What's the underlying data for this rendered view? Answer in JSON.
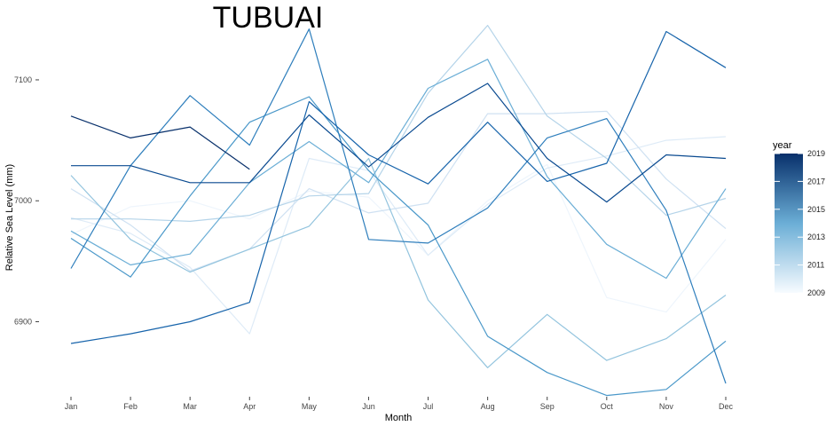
{
  "chart_data": {
    "type": "line",
    "title": "TUBUAI",
    "xlabel": "Month",
    "ylabel": "Relative Sea Level (mm)",
    "categories": [
      "Jan",
      "Feb",
      "Mar",
      "Apr",
      "May",
      "Jun",
      "Jul",
      "Aug",
      "Sep",
      "Oct",
      "Nov",
      "Dec"
    ],
    "yticks": [
      6900,
      7000,
      7100
    ],
    "ylim": [
      6838,
      7144
    ],
    "grid": false,
    "legend": {
      "title": "year",
      "position": "right",
      "type": "colorbar",
      "range": [
        2009,
        2019
      ],
      "ticks": [
        2019,
        2017,
        2015,
        2013,
        2011,
        2009
      ],
      "low_color": "#f7fbff",
      "high_color": "#08306b"
    },
    "series": [
      {
        "year": 2009,
        "color": "#eef5fc",
        "values": [
          6972,
          6995,
          7000,
          6985,
          7008,
          7003,
          6955,
          7000,
          7030,
          6920,
          6908,
          6968
        ]
      },
      {
        "year": 2010,
        "color": "#deebf7",
        "values": [
          6986,
          6973,
          6945,
          6890,
          7035,
          7025,
          6955,
          6997,
          7027,
          7037,
          7050,
          7053
        ]
      },
      {
        "year": 2011,
        "color": "#cfe1f2",
        "values": [
          7010,
          6980,
          6942,
          6960,
          7010,
          6990,
          6998,
          7072,
          7072,
          7074,
          7018,
          6977
        ]
      },
      {
        "year": 2012,
        "color": "#b5d4e9",
        "values": [
          6985,
          6985,
          6983,
          6988,
          7004,
          7006,
          7089,
          7145,
          7070,
          7035,
          6988,
          7002
        ]
      },
      {
        "year": 2013,
        "color": "#93c4de",
        "values": [
          7021,
          6968,
          6941,
          6960,
          6979,
          7035,
          6918,
          6862,
          6906,
          6868,
          6886,
          6922
        ]
      },
      {
        "year": 2014,
        "color": "#6baed6",
        "values": [
          6975,
          6947,
          6956,
          7015,
          7049,
          7015,
          7093,
          7117,
          7020,
          6964,
          6936,
          7010
        ]
      },
      {
        "year": 2015,
        "color": "#4a98c9",
        "values": [
          6969,
          6937,
          7004,
          7065,
          7086,
          7025,
          6980,
          6888,
          6858,
          6839,
          6844,
          6884
        ]
      },
      {
        "year": 2016,
        "color": "#2e7ebc",
        "values": [
          6944,
          7029,
          7087,
          7046,
          7142,
          6968,
          6965,
          6994,
          7052,
          7068,
          6992,
          6849
        ]
      },
      {
        "year": 2017,
        "color": "#1764ab",
        "values": [
          6882,
          6890,
          6900,
          6916,
          7082,
          7038,
          7014,
          7065,
          7016,
          7031,
          7140,
          7110
        ]
      },
      {
        "year": 2018,
        "color": "#0a4a90",
        "values": [
          7029,
          7029,
          7015,
          7015,
          7071,
          7028,
          7069,
          7097,
          7035,
          6999,
          7038,
          7035
        ]
      },
      {
        "year": 2019,
        "color": "#08306b",
        "values": [
          7070,
          7052,
          7061,
          7026,
          null,
          null,
          null,
          null,
          null,
          null,
          null,
          null
        ]
      }
    ]
  }
}
